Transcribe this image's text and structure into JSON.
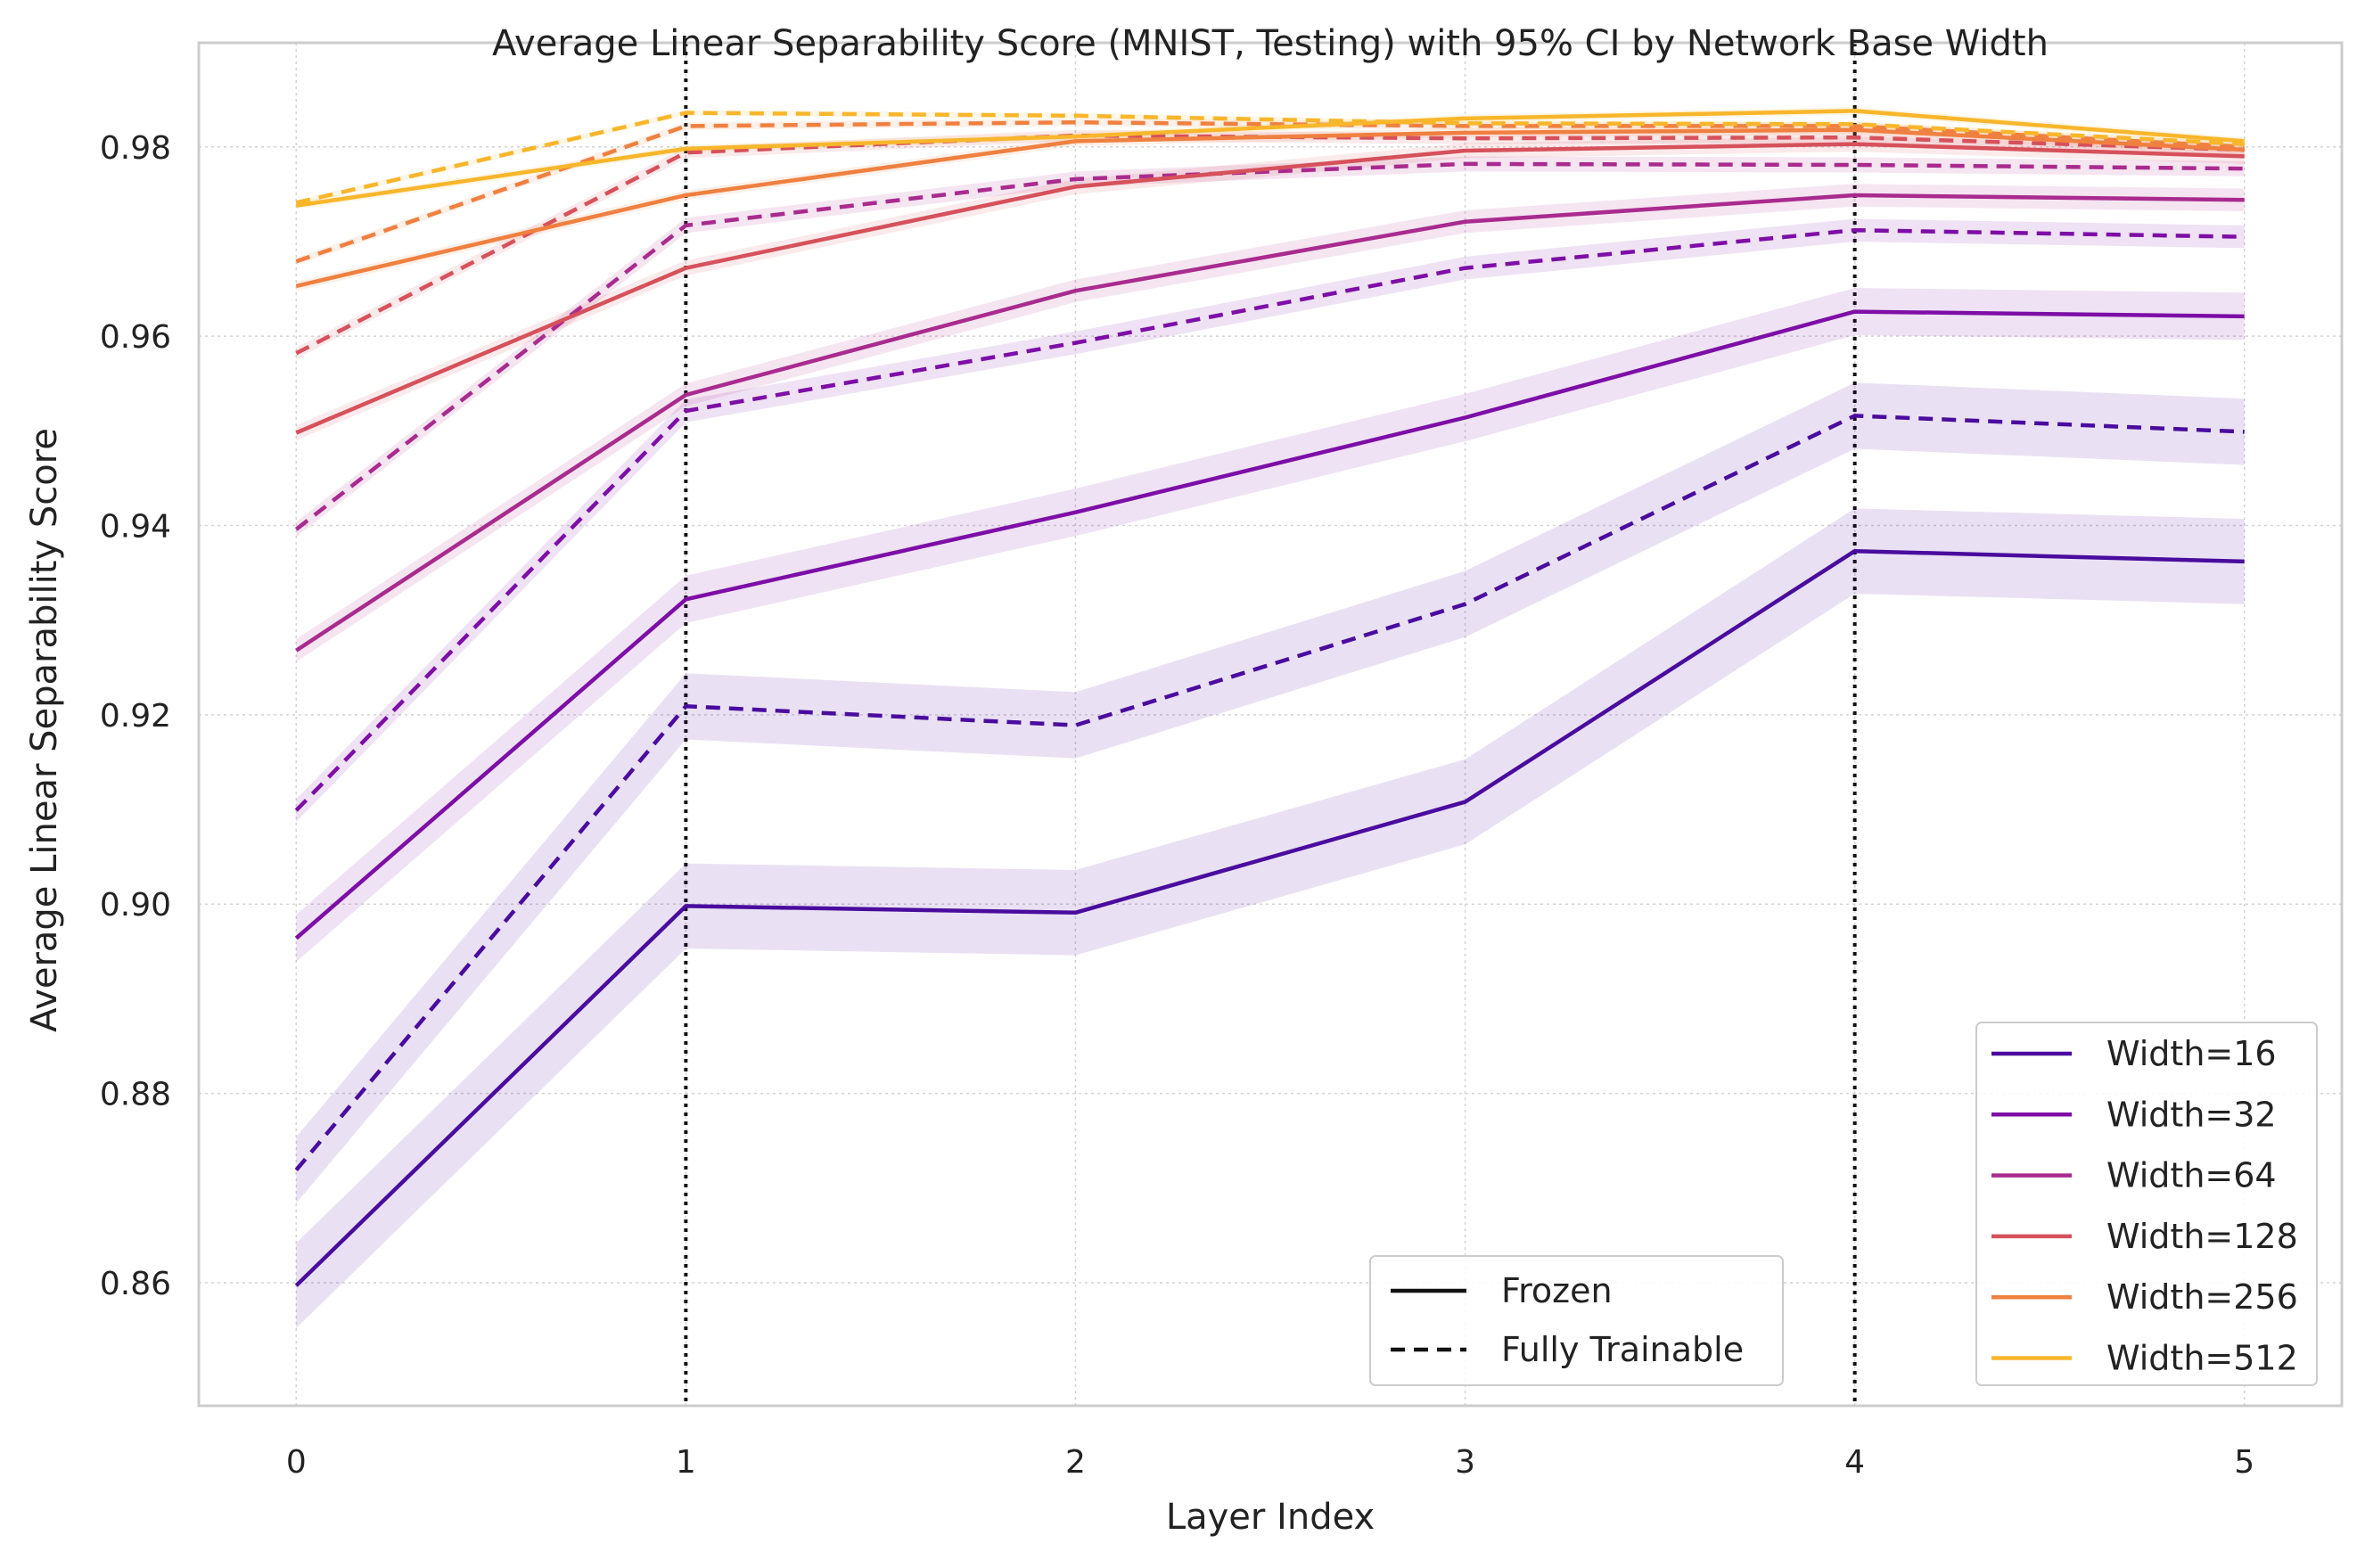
{
  "chart_data": {
    "type": "line",
    "title": "Average Linear Separability Score (MNIST, Testing) with 95% CI by Network Base Width",
    "xlabel": "Layer Index",
    "ylabel": "Average Linear Separability Score",
    "x": [
      0,
      1,
      2,
      3,
      4,
      5
    ],
    "xlim": [
      -0.25,
      5.25
    ],
    "ylim": [
      0.847,
      0.991
    ],
    "xticks": [
      "0",
      "1",
      "2",
      "3",
      "4",
      "5"
    ],
    "yticks": [
      "0.86",
      "0.88",
      "0.90",
      "0.92",
      "0.94",
      "0.96",
      "0.98"
    ],
    "ytick_values": [
      0.86,
      0.88,
      0.9,
      0.92,
      0.94,
      0.96,
      0.98
    ],
    "grid": true,
    "vlines": [
      1,
      4
    ],
    "legend_location": "lower right",
    "style_legend_location": "bottom center-right",
    "style_legend": [
      {
        "label": "Frozen",
        "dash": "solid"
      },
      {
        "label": "Fully Trainable",
        "dash": "dashed"
      }
    ],
    "series": [
      {
        "name": "Width=16",
        "color": "#4a0c9e",
        "frozen": [
          0.8597,
          0.8998,
          0.8991,
          0.9108,
          0.9373,
          0.9362
        ],
        "trainable": [
          0.8719,
          0.9209,
          0.9189,
          0.9317,
          0.9516,
          0.9499
        ],
        "frozen_ci": 0.0045,
        "trainable_ci": 0.0035
      },
      {
        "name": "Width=32",
        "color": "#7d0ea6",
        "frozen": [
          0.8964,
          0.9322,
          0.9414,
          0.9514,
          0.9626,
          0.9621
        ],
        "trainable": [
          0.9099,
          0.9521,
          0.9593,
          0.9672,
          0.9712,
          0.9705
        ],
        "frozen_ci": 0.0025,
        "trainable_ci": 0.0012
      },
      {
        "name": "Width=64",
        "color": "#a92b8e",
        "frozen": [
          0.9268,
          0.9538,
          0.9648,
          0.9721,
          0.9749,
          0.9744
        ],
        "trainable": [
          0.9396,
          0.9717,
          0.9766,
          0.9782,
          0.9781,
          0.9777
        ],
        "frozen_ci": 0.0012,
        "trainable_ci": 0.0008
      },
      {
        "name": "Width=128",
        "color": "#d6515b",
        "frozen": [
          0.9498,
          0.9672,
          0.9758,
          0.9796,
          0.9803,
          0.979
        ],
        "trainable": [
          0.9582,
          0.9794,
          0.9812,
          0.9809,
          0.981,
          0.9797
        ],
        "frozen_ci": 0.0008,
        "trainable_ci": 0.0006
      },
      {
        "name": "Width=256",
        "color": "#ef8040",
        "frozen": [
          0.9653,
          0.9749,
          0.9806,
          0.9815,
          0.9818,
          0.9797
        ],
        "trainable": [
          0.9679,
          0.9822,
          0.9826,
          0.9822,
          0.9822,
          0.98
        ],
        "frozen_ci": 0.0005,
        "trainable_ci": 0.0004
      },
      {
        "name": "Width=512",
        "color": "#f8b62b",
        "frozen": [
          0.9738,
          0.9798,
          0.9811,
          0.983,
          0.9838,
          0.9806
        ],
        "trainable": [
          0.9741,
          0.9836,
          0.9833,
          0.9825,
          0.9824,
          0.9803
        ],
        "frozen_ci": 0.0004,
        "trainable_ci": 0.0003
      }
    ]
  }
}
